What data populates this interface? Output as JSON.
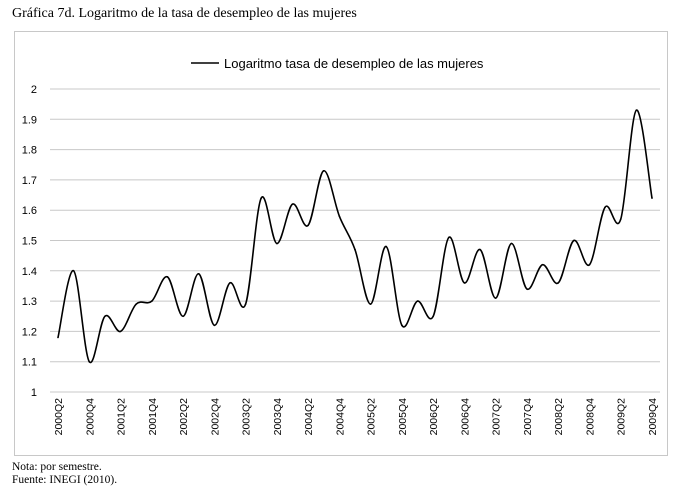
{
  "figure": {
    "title": "Gráfica 7d. Logaritmo de la tasa de desempleo de las mujeres",
    "notes": [
      "Nota: por semestre.",
      "Fuente: INEGI (2010)."
    ]
  },
  "chart_data": {
    "type": "line",
    "title": "",
    "xlabel": "",
    "ylabel": "",
    "ylim": [
      1,
      2
    ],
    "yticks": [
      "1",
      "1.1",
      "1.2",
      "1.3",
      "1.4",
      "1.5",
      "1.6",
      "1.7",
      "1.8",
      "1.9",
      "2"
    ],
    "grid": true,
    "legend_position": "top",
    "line_color": "#000000",
    "x": [
      "2000Q2",
      "2000Q3",
      "2000Q4",
      "2001Q1",
      "2001Q2",
      "2001Q3",
      "2001Q4",
      "2002Q1",
      "2002Q2",
      "2002Q3",
      "2002Q4",
      "2003Q1",
      "2003Q2",
      "2003Q3",
      "2003Q4",
      "2004Q1",
      "2004Q2",
      "2004Q3",
      "2004Q4",
      "2005Q1",
      "2005Q2",
      "2005Q3",
      "2005Q4",
      "2006Q1",
      "2006Q2",
      "2006Q3",
      "2006Q4",
      "2007Q1",
      "2007Q2",
      "2007Q3",
      "2007Q4",
      "2008Q1",
      "2008Q2",
      "2008Q3",
      "2008Q4",
      "2009Q1",
      "2009Q2",
      "2009Q3",
      "2009Q4"
    ],
    "xtick_labels": [
      "2000Q2",
      "2000Q4",
      "2001Q2",
      "2001Q4",
      "2002Q2",
      "2002Q4",
      "2003Q2",
      "2003Q4",
      "2004Q2",
      "2004Q4",
      "2005Q2",
      "2005Q4",
      "2006Q2",
      "2006Q4",
      "2007Q2",
      "2007Q4",
      "2008Q2",
      "2008Q4",
      "2009Q2",
      "2009Q4"
    ],
    "series": [
      {
        "name": "Logaritmo tasa de desempleo de las mujeres",
        "values": [
          1.18,
          1.4,
          1.1,
          1.25,
          1.2,
          1.29,
          1.3,
          1.38,
          1.25,
          1.39,
          1.22,
          1.36,
          1.29,
          1.64,
          1.49,
          1.62,
          1.55,
          1.73,
          1.58,
          1.47,
          1.29,
          1.48,
          1.22,
          1.3,
          1.25,
          1.51,
          1.36,
          1.47,
          1.31,
          1.49,
          1.34,
          1.42,
          1.36,
          1.5,
          1.42,
          1.61,
          1.57,
          1.93,
          1.64
        ]
      }
    ]
  }
}
